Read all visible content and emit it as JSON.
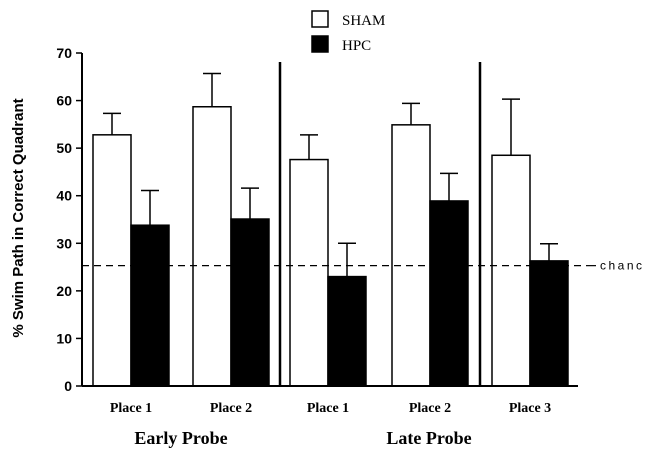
{
  "chart_data": {
    "type": "bar",
    "ylabel": "% Swim Path in Correct Quadrant",
    "ylim": [
      0,
      70
    ],
    "yticks": [
      0,
      10,
      20,
      30,
      40,
      50,
      60,
      70
    ],
    "categories": [
      "Place 1",
      "Place 2",
      "Place 1",
      "Place 2",
      "Place 3"
    ],
    "groups": [
      {
        "label": "Early Probe",
        "categories": [
          0,
          1
        ]
      },
      {
        "label": "Late Probe",
        "categories": [
          2,
          3,
          4
        ]
      }
    ],
    "series": [
      {
        "name": "SHAM",
        "color": "#ffffff",
        "values": [
          52.8,
          58.7,
          47.6,
          54.9,
          48.5
        ],
        "errors": [
          4.5,
          7.0,
          5.2,
          4.5,
          11.8
        ]
      },
      {
        "name": "HPC",
        "color": "#000000",
        "values": [
          33.8,
          35.1,
          23.0,
          38.9,
          26.3
        ],
        "errors": [
          7.3,
          6.5,
          7.0,
          5.8,
          3.6
        ]
      }
    ],
    "reference_line": {
      "value": 25.3,
      "label": "chance",
      "style": "dashed"
    },
    "legend_position": "top-center",
    "grid": false
  }
}
